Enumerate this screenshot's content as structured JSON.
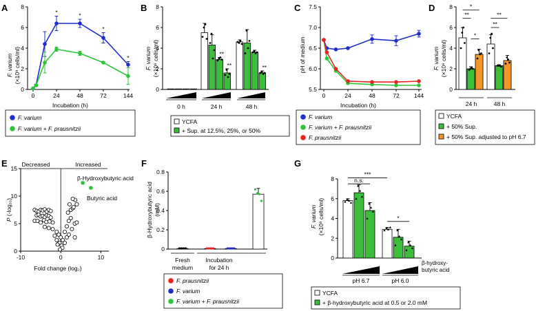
{
  "chart_data": [
    {
      "panel": "A",
      "type": "line",
      "ylabel": {
        "name": "F. varium",
        "unit": "(×10⁹ cells/ml)"
      },
      "xlabel": "Incubation (h)",
      "xticks": [
        0,
        24,
        48,
        72,
        144
      ],
      "yticks": [
        0,
        2,
        4,
        6,
        8
      ],
      "ylim": [
        0,
        8
      ],
      "series": [
        {
          "name": "F. varium",
          "color": "#1f2ccc",
          "x": [
            0,
            3,
            12,
            24,
            48,
            72,
            144
          ],
          "y": [
            0.1,
            0.4,
            4.4,
            6.4,
            6.4,
            5.0,
            2.4
          ],
          "err": [
            0,
            0.1,
            1.2,
            0.7,
            0.4,
            0.5,
            0.3
          ]
        },
        {
          "name": "F. varium + F. prausnitzii",
          "color": "#2ec43a",
          "x": [
            0,
            3,
            12,
            24,
            48,
            72,
            144
          ],
          "y": [
            0.1,
            0.4,
            2.6,
            3.9,
            3.5,
            2.6,
            1.3
          ],
          "err": [
            0,
            0.1,
            1.0,
            0.2,
            0.2,
            0.1,
            0.8
          ]
        }
      ],
      "annotations": [
        "*",
        "*",
        "*",
        "*"
      ],
      "legend": [
        "F. varium",
        "F. varium + F. prausnitzii"
      ],
      "legend_position": "bottom"
    },
    {
      "panel": "B",
      "type": "bar",
      "ylabel": {
        "name": "F. varium",
        "unit": "(×10⁹ cells/ml)"
      },
      "yticks": [
        0,
        2,
        4,
        6,
        8
      ],
      "ylim": [
        0,
        8
      ],
      "groups": [
        "0 h",
        "24 h",
        "48 h"
      ],
      "bars": [
        {
          "group": "0 h",
          "cond": "YCFA",
          "value": 0.05
        },
        {
          "group": "0 h",
          "cond": "Sup. 12.5%",
          "value": 0.05
        },
        {
          "group": "0 h",
          "cond": "Sup. 25%",
          "value": 0.05
        },
        {
          "group": "0 h",
          "cond": "Sup. 50%",
          "value": 0.05
        },
        {
          "group": "24 h",
          "cond": "YCFA",
          "value": 5.5,
          "err": 0.9
        },
        {
          "group": "24 h",
          "cond": "Sup. 12.5%",
          "value": 4.3,
          "err": 1.0
        },
        {
          "group": "24 h",
          "cond": "Sup. 25%",
          "value": 2.9,
          "err": 0.2,
          "sig": "**"
        },
        {
          "group": "24 h",
          "cond": "Sup. 50%",
          "value": 1.6,
          "err": 0.4,
          "sig": "**"
        },
        {
          "group": "48 h",
          "cond": "YCFA",
          "value": 4.6,
          "err": 0.2
        },
        {
          "group": "48 h",
          "cond": "Sup. 12.5%",
          "value": 4.5,
          "err": 1.3
        },
        {
          "group": "48 h",
          "cond": "Sup. 25%",
          "value": 3.6,
          "err": 0.2
        },
        {
          "group": "48 h",
          "cond": "Sup. 50%",
          "value": 1.6,
          "err": 0.2,
          "sig": "**"
        }
      ],
      "legend": [
        "YCFA",
        "+ Sup. at 12.5%, 25%, or 50%"
      ]
    },
    {
      "panel": "C",
      "type": "line",
      "ylabel": "pH of medium",
      "xlabel": "Incubation (h)",
      "xticks": [
        0,
        24,
        48,
        72,
        144
      ],
      "yticks": [
        5.5,
        6.0,
        6.5,
        7.0,
        7.5
      ],
      "ylim": [
        5.5,
        7.5
      ],
      "series": [
        {
          "name": "F. varium",
          "color": "#1f2ccc",
          "x": [
            0,
            3,
            12,
            24,
            48,
            72,
            144
          ],
          "y": [
            6.7,
            6.5,
            6.47,
            6.5,
            6.72,
            6.68,
            6.85
          ],
          "err": [
            0,
            0,
            0,
            0,
            0.1,
            0.12,
            0.08
          ]
        },
        {
          "name": "F. varium + F. prausnitzii",
          "color": "#2ec43a",
          "x": [
            0,
            3,
            12,
            24,
            48,
            72,
            144
          ],
          "y": [
            6.7,
            6.25,
            5.95,
            5.65,
            5.62,
            5.6,
            5.6
          ]
        },
        {
          "name": "F. prausnitzii",
          "color": "#e8231f",
          "x": [
            0,
            3,
            12,
            24,
            48,
            72,
            144
          ],
          "y": [
            6.7,
            6.4,
            6.0,
            5.7,
            5.68,
            5.68,
            5.7
          ]
        }
      ],
      "legend": [
        "F. varium",
        "F. varium + F. prausnitzii",
        "F. prausnitzii"
      ]
    },
    {
      "panel": "D",
      "type": "bar",
      "ylabel": {
        "name": "F. varium",
        "unit": "(×10⁹ cells/ml)"
      },
      "yticks": [
        0,
        2,
        4,
        6,
        8
      ],
      "ylim": [
        0,
        8
      ],
      "groups": [
        "24 h",
        "48 h"
      ],
      "bars": [
        {
          "group": "24 h",
          "cond": "YCFA",
          "value": 5.0,
          "err": 1.0
        },
        {
          "group": "24 h",
          "cond": "+ 50% Sup.",
          "value": 2.0,
          "err": 0.2
        },
        {
          "group": "24 h",
          "cond": "+ 50% Sup. adjusted to pH 6.7",
          "value": 3.4,
          "err": 0.5
        },
        {
          "group": "48 h",
          "cond": "YCFA",
          "value": 4.4,
          "err": 0.9
        },
        {
          "group": "48 h",
          "cond": "+ 50% Sup.",
          "value": 2.3,
          "err": 0.1
        },
        {
          "group": "48 h",
          "cond": "+ 50% Sup. adjusted to pH 6.7",
          "value": 2.8,
          "err": 0.5
        }
      ],
      "significance": [
        "*",
        "**",
        "*",
        "**",
        "**"
      ],
      "legend": [
        "YCFA",
        "+ 50% Sup.",
        "+ 50% Sup. adjusted to pH 6.7"
      ]
    },
    {
      "panel": "E",
      "type": "scatter",
      "title_left": "Decreased",
      "title_right": "Increased",
      "xlabel": "Fold change (log₂)",
      "ylabel": "P (-log₁₀)",
      "xticks": [
        -10,
        0,
        10
      ],
      "yticks": [
        0,
        5,
        10,
        15
      ],
      "xlim": [
        -10,
        12
      ],
      "ylim": [
        0,
        15
      ],
      "points_open": [
        [
          -6.5,
          7.5
        ],
        [
          -6,
          7.3
        ],
        [
          -5.5,
          7.2
        ],
        [
          -5,
          7.5
        ],
        [
          -4.5,
          7.4
        ],
        [
          -4,
          7.6
        ],
        [
          -3.5,
          7.2
        ],
        [
          -3,
          7.5
        ],
        [
          -2.5,
          7.3
        ],
        [
          -6,
          6.5
        ],
        [
          -5.5,
          6.6
        ],
        [
          -5,
          6.3
        ],
        [
          -4.5,
          6.4
        ],
        [
          -4,
          6.2
        ],
        [
          -3.5,
          6.5
        ],
        [
          -3,
          6.4
        ],
        [
          -2.5,
          6.1
        ],
        [
          -6.5,
          5.5
        ],
        [
          -5.8,
          5.5
        ],
        [
          -5,
          5.2
        ],
        [
          -4.2,
          5.6
        ],
        [
          -3.6,
          5.3
        ],
        [
          -2.8,
          5.4
        ],
        [
          -2,
          5.2
        ],
        [
          -4,
          4.4
        ],
        [
          -3,
          4.2
        ],
        [
          -2,
          4.0
        ],
        [
          -1,
          3.5
        ],
        [
          -0.5,
          3.0
        ],
        [
          0,
          2.5
        ],
        [
          0.5,
          2.0
        ],
        [
          -0.3,
          1.5
        ],
        [
          0.2,
          1.0
        ],
        [
          0.4,
          0.6
        ],
        [
          -0.2,
          0.3
        ],
        [
          -1.5,
          2.8
        ],
        [
          -1,
          2.0
        ],
        [
          -0.8,
          1.2
        ],
        [
          1,
          3.5
        ],
        [
          1.5,
          4.5
        ],
        [
          2,
          5.5
        ],
        [
          2.5,
          6.0
        ],
        [
          1.8,
          7.0
        ],
        [
          2.5,
          7.5
        ],
        [
          3,
          7.8
        ],
        [
          2.2,
          8.5
        ],
        [
          3.2,
          8.0
        ],
        [
          4,
          8.5
        ],
        [
          3.6,
          9.3
        ],
        [
          3,
          9.5
        ],
        [
          1,
          1.5
        ],
        [
          1.5,
          2.5
        ],
        [
          2,
          3.0
        ],
        [
          2.8,
          4.0
        ],
        [
          3.5,
          5.0
        ],
        [
          4,
          5.2
        ],
        [
          3.5,
          2.5
        ]
      ],
      "points_highlight": [
        {
          "label": "β-Hydroxybutyric acid",
          "x": 5.5,
          "y": 12.4
        },
        {
          "label": "Butyric acid",
          "x": 7.5,
          "y": 11.5
        }
      ]
    },
    {
      "panel": "F",
      "type": "bar",
      "ylabel": {
        "name": "β-Hydroxybutyric acid",
        "unit": "(mM)"
      },
      "yticks": [
        0,
        0.2,
        0.4,
        0.6,
        0.8
      ],
      "ylim": [
        0,
        0.8
      ],
      "groups": [
        "Fresh medium",
        "Incubation for 24 h"
      ],
      "bars": [
        {
          "group": "Fresh medium",
          "strain": "-",
          "value": 0.0
        },
        {
          "group": "Incubation for 24 h",
          "strain": "F. prausnitzii",
          "value": 0.0
        },
        {
          "group": "Incubation for 24 h",
          "strain": "F. varium",
          "value": 0.0
        },
        {
          "group": "Incubation for 24 h",
          "strain": "F. varium + F. prausnitzii",
          "value": 0.57,
          "err": 0.06
        }
      ],
      "legend": [
        "F. prausnitzii",
        "F. varium",
        "F. varium + F. prausnitzii"
      ]
    },
    {
      "panel": "G",
      "type": "bar",
      "ylabel": {
        "name": "F. varium",
        "unit": "(×10⁹ cells/ml)"
      },
      "yticks": [
        0,
        2,
        4,
        6,
        8
      ],
      "ylim": [
        0,
        8
      ],
      "groups": [
        "pH 6.7",
        "pH 6.0"
      ],
      "bars": [
        {
          "group": "pH 6.7",
          "cond": "YCFA",
          "value": 5.8,
          "err": 0.2
        },
        {
          "group": "pH 6.7",
          "cond": "β-hydroxybutyric acid 0.5 mM",
          "value": 6.6,
          "err": 0.8
        },
        {
          "group": "pH 6.7",
          "cond": "β-hydroxybutyric acid 2.0 mM",
          "value": 4.8,
          "err": 0.8
        },
        {
          "group": "pH 6.0",
          "cond": "YCFA",
          "value": 2.9,
          "err": 0.2
        },
        {
          "group": "pH 6.0",
          "cond": "β-hydroxybutyric acid 0.5 mM",
          "value": 2.1,
          "err": 0.8
        },
        {
          "group": "pH 6.0",
          "cond": "β-hydroxybutyric acid 2.0 mM",
          "value": 1.2,
          "err": 0.5
        }
      ],
      "significance": [
        "***",
        "n.s.",
        "*"
      ],
      "ramp_label": "β-hydroxy-butyric acid",
      "legend": [
        "YCFA",
        "+ β-hydroxybutyric acid at 0.5 or 2.0 mM"
      ]
    }
  ],
  "text": {
    "A": {
      "label": "A",
      "ylab_name": "F. varium",
      "ylab_unit": "(×10⁹ cells/ml)",
      "xlab": "Incubation (h)",
      "leg1": "F. varium",
      "leg2a": "F. varium",
      "leg2b": " + ",
      "leg2c": "F. prausnitzii"
    },
    "B": {
      "label": "B",
      "ylab_name": "F. varium",
      "ylab_unit": "(×10⁹ cells/ml)",
      "g1": "0 h",
      "g2": "24 h",
      "g3": "48 h",
      "leg1": "YCFA",
      "leg2": "+ Sup. at 12.5%, 25%, or 50%"
    },
    "C": {
      "label": "C",
      "ylab": "pH of medium",
      "xlab": "Incubation (h)",
      "leg1": "F. varium",
      "leg2a": "F. varium",
      "leg2b": " + ",
      "leg2c": "F. prausnitzii",
      "leg3": "F. prausnitzii"
    },
    "D": {
      "label": "D",
      "ylab_name": "F. varium",
      "ylab_unit": "(×10⁹ cells/ml)",
      "g1": "24 h",
      "g2": "48 h",
      "leg1": "YCFA",
      "leg2": "+ 50% Sup.",
      "leg3": "+ 50% Sup. adjusted to pH 6.7"
    },
    "E": {
      "label": "E",
      "dec": "Decreased",
      "inc": "Increased",
      "xlab": "Fold change (log₂)",
      "ylab_p": "P",
      "ylab_rest": " (-log₁₀)",
      "hl1": "β-Hydroxybutyric acid",
      "hl2": "Butyric acid"
    },
    "F": {
      "label": "F",
      "ylab_name": "β-Hydroxybutyric acid",
      "ylab_unit": "(mM)",
      "g1a": "Fresh",
      "g1b": "medium",
      "g2a": "Incubation",
      "g2b": "for 24 h",
      "leg1": "F. prausnitzii",
      "leg2": "F. varium",
      "leg3a": "F. varium",
      "leg3b": " + ",
      "leg3c": "F. prausnitzii"
    },
    "G": {
      "label": "G",
      "ylab_name": "F. varium",
      "ylab_unit": "(×10⁹ cells/ml)",
      "g1": "pH 6.7",
      "g2": "pH 6.0",
      "ramp1": "β-hydroxy-",
      "ramp2": "butyric acid",
      "leg1": "YCFA",
      "leg2": "+ β-hydroxybutyric acid at 0.5 or 2.0 mM"
    }
  },
  "colors": {
    "blue": "#1f2ccc",
    "green": "#2ec43a",
    "red": "#e8231f",
    "orange": "#f4962a",
    "bar_green": "#3cbe3c",
    "black": "#000000"
  }
}
